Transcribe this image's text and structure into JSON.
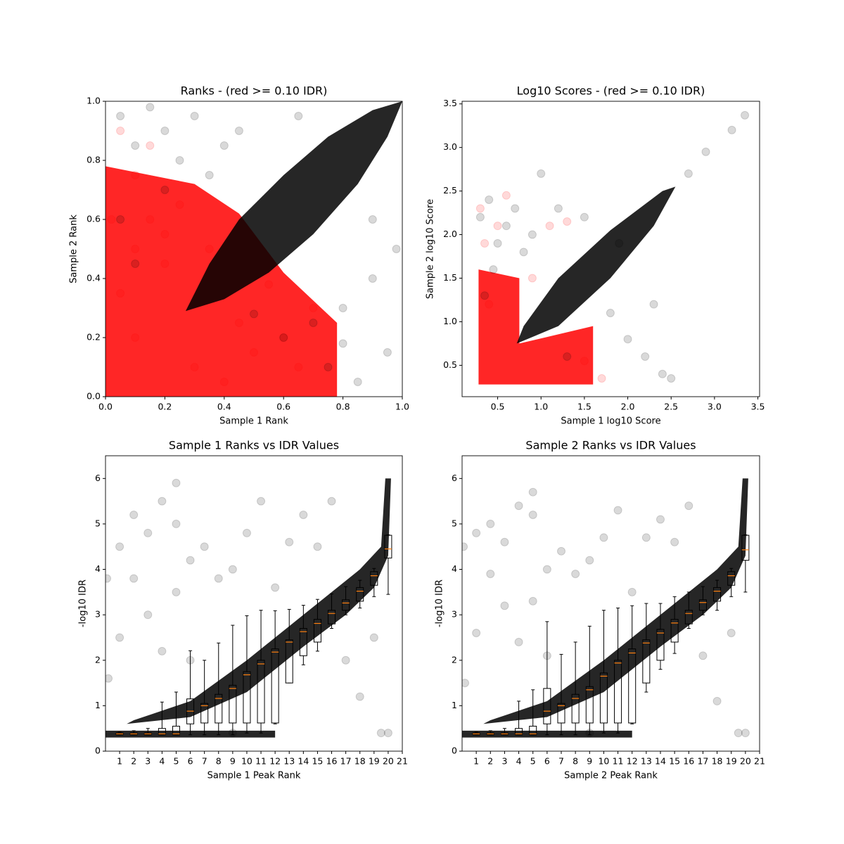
{
  "chart_data": [
    {
      "type": "scatter",
      "title": "Ranks - (red >= 0.10 IDR)",
      "x_label": "Sample 1 Rank",
      "y_label": "Sample 2 Rank",
      "xlim": [
        0,
        1
      ],
      "ylim": [
        0,
        1
      ],
      "xticks": [
        {
          "value": 0,
          "label": "0.0"
        },
        0.2,
        0.4,
        0.6,
        0.8,
        {
          "value": 1,
          "label": "1.0"
        }
      ],
      "yticks": [
        {
          "value": 0,
          "label": "0.0"
        },
        0.2,
        0.4,
        0.6,
        0.8,
        {
          "value": 1,
          "label": "1.0"
        }
      ],
      "clouds": [
        {
          "color": "#ff0000",
          "x": [
            0,
            0.78,
            0.78,
            0.6,
            0.45,
            0.3,
            0.15,
            0
          ],
          "y": [
            0,
            0,
            0.25,
            0.42,
            0.62,
            0.72,
            0.75,
            0.78
          ]
        },
        {
          "color": "#000000",
          "x": [
            0.27,
            0.4,
            0.55,
            0.7,
            0.85,
            0.95,
            1.0,
            0.9,
            0.75,
            0.6,
            0.45,
            0.35
          ],
          "y": [
            0.29,
            0.33,
            0.42,
            0.55,
            0.72,
            0.88,
            1.0,
            0.97,
            0.88,
            0.75,
            0.6,
            0.45
          ]
        }
      ],
      "series": [
        {
          "color": "#ff0000",
          "x": [
            0.05,
            0.1,
            0.15,
            0.2,
            0.25,
            0.05,
            0.1,
            0.3,
            0.4,
            0.5,
            0.6,
            0.7,
            0.35,
            0.2,
            0.1,
            0.45,
            0.55,
            0.65,
            0.02,
            0.15
          ],
          "y": [
            0.9,
            0.75,
            0.6,
            0.55,
            0.65,
            0.35,
            0.2,
            0.1,
            0.05,
            0.15,
            0.2,
            0.3,
            0.5,
            0.45,
            0.5,
            0.25,
            0.38,
            0.1,
            0.6,
            0.85
          ]
        },
        {
          "color": "#000000",
          "x": [
            0.05,
            0.1,
            0.15,
            0.2,
            0.25,
            0.3,
            0.05,
            0.1,
            0.2,
            0.7,
            0.8,
            0.9,
            0.95,
            0.85,
            0.75,
            0.6,
            0.45,
            0.35,
            0.65,
            0.9,
            0.98,
            0.8,
            0.5,
            0.4
          ],
          "y": [
            0.95,
            0.85,
            0.98,
            0.9,
            0.8,
            0.95,
            0.6,
            0.45,
            0.7,
            0.25,
            0.3,
            0.4,
            0.15,
            0.05,
            0.1,
            0.2,
            0.9,
            0.75,
            0.95,
            0.6,
            0.5,
            0.18,
            0.28,
            0.85
          ]
        }
      ]
    },
    {
      "type": "scatter",
      "title": "Log10 Scores - (red >= 0.10 IDR)",
      "x_label": "Sample 1 log10 Score",
      "y_label": "Sample 2 log10 Score",
      "xlim": [
        0.09,
        3.52
      ],
      "ylim": [
        0.14,
        3.53
      ],
      "xticks": [
        0.5,
        {
          "value": 1,
          "label": "1.0"
        },
        1.5,
        {
          "value": 2,
          "label": "2.0"
        },
        2.5,
        {
          "value": 3,
          "label": "3.0"
        },
        3.5
      ],
      "yticks": [
        0.5,
        {
          "value": 1,
          "label": "1.0"
        },
        1.5,
        {
          "value": 2,
          "label": "2.0"
        },
        2.5,
        {
          "value": 3,
          "label": "3.0"
        },
        3.5
      ],
      "clouds": [
        {
          "color": "#ff0000",
          "x": [
            0.28,
            1.6,
            1.6,
            0.75,
            0.75,
            0.28
          ],
          "y": [
            0.28,
            0.28,
            0.95,
            0.75,
            1.5,
            1.6
          ]
        },
        {
          "color": "#000000",
          "x": [
            0.72,
            1.2,
            1.8,
            2.3,
            2.55,
            2.4,
            1.8,
            1.2,
            0.8
          ],
          "y": [
            0.75,
            0.95,
            1.5,
            2.1,
            2.55,
            2.5,
            2.05,
            1.5,
            0.95
          ]
        }
      ],
      "series": [
        {
          "color": "#ff0000",
          "x": [
            0.3,
            0.35,
            0.5,
            0.6,
            1.1,
            1.3,
            0.4,
            0.9,
            1.5,
            1.7
          ],
          "y": [
            2.3,
            1.9,
            2.1,
            2.45,
            2.1,
            2.15,
            1.2,
            1.5,
            0.55,
            0.35
          ]
        },
        {
          "color": "#000000",
          "x": [
            0.3,
            0.4,
            0.5,
            0.6,
            0.45,
            0.35,
            0.7,
            0.9,
            1.2,
            1.5,
            1.8,
            2.0,
            2.2,
            2.4,
            2.5,
            1.0,
            2.7,
            2.9,
            3.2,
            3.35,
            1.9,
            2.3,
            0.8,
            1.3
          ],
          "y": [
            2.2,
            2.4,
            1.9,
            2.1,
            1.6,
            1.3,
            2.3,
            2.0,
            2.3,
            2.2,
            1.1,
            0.8,
            0.6,
            0.4,
            0.35,
            2.7,
            2.7,
            2.95,
            3.2,
            3.37,
            1.9,
            1.2,
            1.8,
            0.6
          ]
        }
      ]
    },
    {
      "type": "box",
      "title": "Sample 1 Ranks vs IDR Values",
      "x_label": "Sample 1 Peak Rank",
      "y_label": "-log10 IDR",
      "xlim": [
        0,
        21
      ],
      "ylim": [
        0,
        6.5
      ],
      "xticks": [
        1,
        2,
        3,
        4,
        5,
        6,
        7,
        8,
        9,
        10,
        11,
        12,
        13,
        14,
        15,
        16,
        17,
        18,
        19,
        20,
        21
      ],
      "yticks": [
        0,
        1,
        2,
        3,
        4,
        5,
        6
      ],
      "clouds": [
        {
          "color": "#000000",
          "x": [
            0,
            12,
            12,
            0
          ],
          "y": [
            0.3,
            0.3,
            0.45,
            0.45
          ]
        },
        {
          "color": "#000000",
          "x": [
            1.5,
            6,
            10,
            14,
            17,
            19,
            20,
            20.2,
            19.8,
            19.5,
            18,
            14,
            10,
            6,
            2
          ],
          "y": [
            0.6,
            0.75,
            1.3,
            2.3,
            3.0,
            3.6,
            4.3,
            6,
            6,
            4.5,
            4.0,
            3.0,
            2.0,
            1.1,
            0.68
          ]
        }
      ],
      "series": [
        {
          "color": "#000000",
          "x": [
            0.1,
            1,
            1,
            2,
            2,
            3,
            3,
            4,
            4,
            5,
            5,
            6,
            6,
            7,
            8,
            9,
            10,
            11,
            12,
            13,
            14,
            15,
            16,
            17,
            18,
            19,
            0.2,
            19.5,
            20,
            5,
            9
          ],
          "y": [
            3.8,
            4.5,
            2.5,
            3.8,
            5.2,
            3.0,
            4.8,
            5.5,
            2.2,
            3.5,
            5.0,
            4.2,
            2.0,
            4.5,
            3.8,
            4.0,
            4.8,
            5.5,
            3.6,
            4.6,
            5.2,
            4.5,
            5.5,
            2.0,
            1.2,
            2.5,
            1.6,
            0.4,
            0.4,
            5.9,
            0.4
          ]
        }
      ],
      "boxes": {
        "positions": [
          1,
          2,
          3,
          4,
          5,
          6,
          7,
          8,
          9,
          10,
          11,
          12,
          13,
          14,
          15,
          16,
          17,
          18,
          19,
          20
        ],
        "median": [
          0.38,
          0.38,
          0.38,
          0.38,
          0.38,
          0.88,
          1.0,
          1.16,
          1.38,
          1.68,
          1.92,
          2.18,
          2.4,
          2.63,
          2.81,
          3.03,
          3.26,
          3.52,
          3.86,
          4.45
        ],
        "q1": [
          0.36,
          0.36,
          0.36,
          0.36,
          0.36,
          0.6,
          0.62,
          0.62,
          0.62,
          0.62,
          0.62,
          0.62,
          1.5,
          2.1,
          2.4,
          2.8,
          3.1,
          3.3,
          3.65,
          4.25
        ],
        "q3": [
          0.4,
          0.4,
          0.4,
          0.5,
          0.55,
          1.15,
          1.05,
          1.25,
          1.45,
          1.75,
          2.0,
          2.25,
          2.45,
          2.7,
          2.9,
          3.1,
          3.33,
          3.6,
          3.95,
          4.75
        ],
        "whislo": [
          0.36,
          0.36,
          0.36,
          0.36,
          0.36,
          0.36,
          0.36,
          0.36,
          0.36,
          0.4,
          0.4,
          0.6,
          1.5,
          1.9,
          2.2,
          2.7,
          3.0,
          3.15,
          3.4,
          3.45
        ],
        "whishi": [
          0.42,
          0.45,
          0.5,
          1.08,
          1.3,
          2.21,
          2.0,
          2.38,
          2.77,
          2.98,
          3.1,
          3.09,
          3.12,
          3.21,
          3.34,
          3.46,
          3.62,
          3.76,
          4.02,
          4.76
        ]
      }
    },
    {
      "type": "box",
      "title": "Sample 2 Ranks vs IDR Values",
      "x_label": "Sample 2 Peak Rank",
      "y_label": "-log10 IDR",
      "xlim": [
        0,
        21
      ],
      "ylim": [
        0,
        6.5
      ],
      "xticks": [
        1,
        2,
        3,
        4,
        5,
        6,
        7,
        8,
        9,
        10,
        11,
        12,
        13,
        14,
        15,
        16,
        17,
        18,
        19,
        20,
        21
      ],
      "yticks": [
        0,
        1,
        2,
        3,
        4,
        5,
        6
      ],
      "clouds": [
        {
          "color": "#000000",
          "x": [
            0,
            12,
            12,
            0
          ],
          "y": [
            0.3,
            0.3,
            0.45,
            0.45
          ]
        },
        {
          "color": "#000000",
          "x": [
            1.5,
            6,
            10,
            14,
            17,
            19,
            20,
            20.2,
            19.8,
            19.5,
            18,
            14,
            10,
            6,
            2
          ],
          "y": [
            0.6,
            0.75,
            1.3,
            2.3,
            3.0,
            3.6,
            4.3,
            6,
            6,
            4.5,
            4.0,
            3.0,
            2.0,
            1.1,
            0.68
          ]
        }
      ],
      "series": [
        {
          "color": "#000000",
          "x": [
            0.1,
            1,
            1,
            2,
            2,
            3,
            3,
            4,
            4,
            5,
            5,
            6,
            6,
            7,
            8,
            9,
            10,
            11,
            12,
            13,
            14,
            15,
            16,
            17,
            18,
            19,
            0.2,
            19.5,
            20,
            5,
            9
          ],
          "y": [
            4.5,
            4.8,
            2.6,
            3.9,
            5.0,
            3.2,
            4.6,
            5.4,
            2.4,
            3.3,
            5.2,
            4.0,
            2.1,
            4.4,
            3.9,
            4.2,
            4.7,
            5.3,
            3.5,
            4.7,
            5.1,
            4.6,
            5.4,
            2.1,
            1.1,
            2.6,
            1.5,
            0.4,
            0.4,
            5.7,
            0.4
          ]
        }
      ],
      "boxes": {
        "positions": [
          1,
          2,
          3,
          4,
          5,
          6,
          7,
          8,
          9,
          10,
          11,
          12,
          13,
          14,
          15,
          16,
          17,
          18,
          19,
          20
        ],
        "median": [
          0.38,
          0.38,
          0.38,
          0.38,
          0.38,
          0.88,
          1.0,
          1.16,
          1.35,
          1.65,
          1.94,
          2.16,
          2.38,
          2.6,
          2.82,
          3.03,
          3.27,
          3.52,
          3.86,
          4.43
        ],
        "q1": [
          0.36,
          0.36,
          0.36,
          0.36,
          0.36,
          0.6,
          0.62,
          0.62,
          0.62,
          0.62,
          0.62,
          0.62,
          1.5,
          2.0,
          2.4,
          2.8,
          3.1,
          3.3,
          3.65,
          4.2
        ],
        "q3": [
          0.4,
          0.4,
          0.4,
          0.5,
          0.55,
          1.38,
          1.05,
          1.25,
          1.42,
          1.72,
          2.0,
          2.25,
          2.45,
          2.68,
          2.9,
          3.1,
          3.33,
          3.6,
          3.95,
          4.75
        ],
        "whislo": [
          0.36,
          0.36,
          0.36,
          0.36,
          0.36,
          0.36,
          0.36,
          0.36,
          0.36,
          0.4,
          0.4,
          0.6,
          1.3,
          1.8,
          2.15,
          2.7,
          3.0,
          3.1,
          3.4,
          3.5
        ],
        "whishi": [
          0.42,
          0.45,
          0.5,
          1.1,
          1.35,
          2.85,
          2.13,
          2.4,
          2.75,
          3.1,
          3.15,
          3.2,
          3.25,
          3.25,
          3.4,
          3.5,
          3.62,
          3.76,
          4.02,
          4.76
        ]
      }
    }
  ]
}
